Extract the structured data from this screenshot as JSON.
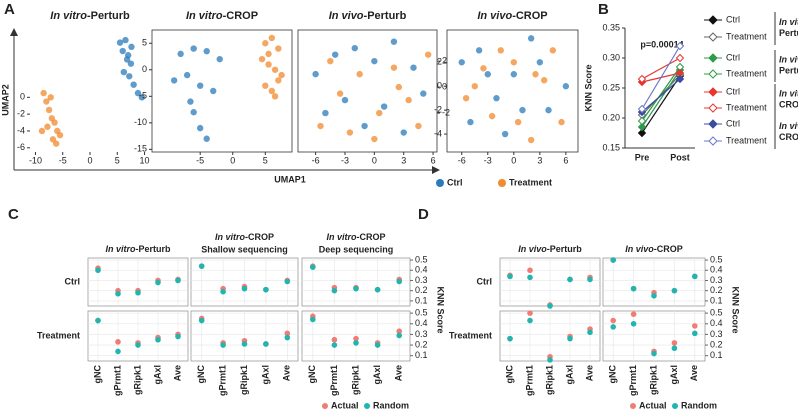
{
  "chart_data": [
    {
      "type": "umap",
      "label": "A",
      "xlabel": "UMAP1",
      "ylabel": "UMAP2",
      "series": [
        {
          "name": "Ctrl",
          "color": "#2b7bba"
        },
        {
          "name": "Treatment",
          "color": "#f28a2e"
        }
      ],
      "panels": [
        {
          "title": "In vitro-Perturb",
          "frame": false,
          "ytick_side": "left",
          "xlim": [
            -11,
            11
          ],
          "ylim": [
            -6.5,
            8
          ],
          "xticks": [
            -10,
            -5,
            0,
            5,
            10
          ],
          "yticks": [
            0,
            -2,
            -4,
            -6
          ],
          "points": [
            {
              "x": [
                5.5,
                6,
                6.5,
                7,
                7.5,
                6.2,
                7.2,
                8,
                8.8,
                9.5,
                6.8,
                7.6
              ],
              "y": [
                6.5,
                5.5,
                6.8,
                5,
                4,
                3,
                2.5,
                1.5,
                0.5,
                0,
                4.5,
                6
              ]
            },
            {
              "x": [
                -8.5,
                -8,
                -7.5,
                -7,
                -6.5,
                -6,
                -5.5,
                -7.8,
                -8.8,
                -6.8,
                -7.2,
                -6.2
              ],
              "y": [
                0.5,
                -0.5,
                -1.5,
                -2.5,
                -3,
                -4,
                -4.5,
                -3.5,
                -4,
                -5,
                0,
                -5.5
              ]
            }
          ]
        },
        {
          "title": "In vitro-CROP",
          "frame": true,
          "ytick_side": "left",
          "xlim": [
            -12.4,
            9.1
          ],
          "ylim": [
            -15.5,
            7.5
          ],
          "xticks": [
            -5,
            0,
            5
          ],
          "yticks": [
            5,
            0,
            -5,
            -10,
            -15
          ],
          "points": [
            {
              "x": [
                -8,
                -6,
                -4,
                -2,
                -9,
                -7,
                -5,
                -3,
                -6,
                -5,
                -4,
                -6.5
              ],
              "y": [
                3,
                4,
                3.5,
                2,
                -2,
                -1,
                -3,
                -4,
                -8,
                -11,
                -13,
                -6
              ]
            },
            {
              "x": [
                5,
                6,
                7,
                4.5,
                5.5,
                6.5,
                7.5,
                5,
                6,
                7,
                5.5,
                6.5
              ],
              "y": [
                5,
                6,
                4,
                2,
                1,
                0,
                -1,
                -3,
                -4,
                -2,
                3,
                -5
              ]
            }
          ]
        },
        {
          "title": "In vivo-Perturb",
          "frame": true,
          "ytick_side": "right",
          "xlim": [
            -7.8,
            6.4
          ],
          "ylim": [
            -5,
            4.4
          ],
          "xticks": [
            -6,
            -3,
            0,
            3,
            6
          ],
          "yticks": [
            2,
            0,
            -2
          ],
          "points": [
            {
              "x": [
                -6,
                -4,
                -2,
                0,
                2,
                4,
                -5,
                -3,
                -1,
                1,
                3,
                5
              ],
              "y": [
                1,
                2.5,
                3,
                2,
                3.5,
                1.5,
                -2,
                -1,
                -3,
                -1.5,
                -3.5,
                -0.5
              ]
            },
            {
              "x": [
                -5.5,
                -3.5,
                -1.5,
                0.5,
                2.5,
                4.5,
                -4.5,
                -2.5,
                0,
                2,
                3.5,
                5.5
              ],
              "y": [
                -3,
                -0.5,
                1,
                -2,
                0,
                -3,
                2,
                -3.5,
                -4,
                1.5,
                -1,
                2.5
              ]
            }
          ]
        },
        {
          "title": "In vivo-CROP",
          "frame": true,
          "ytick_side": "left",
          "xlim": [
            -7.7,
            7.4
          ],
          "ylim": [
            -5.5,
            4.7
          ],
          "xticks": [
            -6,
            -3,
            0,
            3,
            6
          ],
          "yticks": [
            2,
            0,
            -2,
            -4
          ],
          "points": [
            {
              "x": [
                -6,
                -4,
                -2,
                0,
                2,
                4,
                6,
                -5,
                -3,
                -1,
                1,
                3
              ],
              "y": [
                2,
                3,
                -1,
                1,
                4,
                -2,
                0,
                -3,
                1,
                -4,
                -2,
                2
              ]
            },
            {
              "x": [
                -5.5,
                -3.5,
                -1.5,
                0.5,
                2.5,
                4.5,
                5.5,
                -4.5,
                -2.5,
                0,
                2,
                3.5
              ],
              "y": [
                -1,
                1.5,
                3,
                -3,
                1,
                3,
                -3,
                0,
                -2.5,
                2,
                -4.5,
                0.5
              ]
            }
          ]
        }
      ]
    },
    {
      "type": "line",
      "label": "B",
      "ylabel": "KNN Score",
      "annotation": "p=0.00014",
      "categories": [
        "Pre",
        "Post"
      ],
      "ylim": [
        0.15,
        0.35
      ],
      "yticks": [
        0.15,
        {
          "value": 0.2,
          "label": "0.20"
        },
        0.25,
        {
          "value": 0.3,
          "label": "0.30"
        },
        0.35
      ],
      "groups": [
        "In vitro-Perturb",
        "In vivo-Perturb",
        "In vitro-CROP",
        "In vivo-CROP"
      ],
      "series": [
        {
          "name": "Ctrl",
          "color": "#111111",
          "filled": true,
          "values": [
            0.175,
            0.27
          ]
        },
        {
          "name": "Treatment",
          "color": "#666666",
          "filled": false,
          "values": [
            0.205,
            0.272
          ]
        },
        {
          "name": "Ctrl",
          "color": "#2e9b4a",
          "filled": true,
          "values": [
            0.185,
            0.28
          ]
        },
        {
          "name": "Treatment",
          "color": "#2e9b4a",
          "filled": false,
          "values": [
            0.195,
            0.285
          ]
        },
        {
          "name": "Ctrl",
          "color": "#e8352f",
          "filled": true,
          "values": [
            0.26,
            0.275
          ]
        },
        {
          "name": "Treatment",
          "color": "#e8352f",
          "filled": false,
          "values": [
            0.265,
            0.3
          ]
        },
        {
          "name": "Ctrl",
          "color": "#3b4ba0",
          "filled": true,
          "values": [
            0.21,
            0.265
          ]
        },
        {
          "name": "Treatment",
          "color": "#6a78c8",
          "filled": false,
          "values": [
            0.215,
            0.32
          ]
        }
      ]
    },
    {
      "type": "dotgrid",
      "label": "C",
      "ylabel": "KNN Score",
      "columns": [
        {
          "title": "In vitro-Perturb"
        },
        {
          "title": "In vitro-CROP",
          "subtitle": "Shallow sequencing"
        },
        {
          "title": "In vitro-CROP",
          "subtitle": "Deep sequencing"
        }
      ],
      "rows": [
        "Ctrl",
        "Treatment"
      ],
      "categories": [
        "gNC",
        "gPrmt1",
        "gRipk1",
        "gAxl",
        "Ave"
      ],
      "ylim": [
        0.05,
        0.52
      ],
      "yticks": [
        0.1,
        0.2,
        0.3,
        0.4,
        0.5
      ],
      "series": [
        {
          "name": "Actual",
          "color": "#f07c74",
          "values": [
            [
              [
                0.42,
                0.2,
                0.2,
                0.3,
                0.31
              ],
              [
                0.44,
                0.22,
                0.24,
                0.21,
                0.3
              ],
              [
                0.44,
                0.23,
                0.23,
                0.21,
                0.31
              ]
            ],
            [
              [
                0.43,
                0.23,
                0.22,
                0.27,
                0.3
              ],
              [
                0.45,
                0.22,
                0.24,
                0.21,
                0.31
              ],
              [
                0.47,
                0.25,
                0.26,
                0.22,
                0.33
              ]
            ]
          ]
        },
        {
          "name": "Random",
          "color": "#22b5b0",
          "values": [
            [
              [
                0.4,
                0.17,
                0.18,
                0.28,
                0.3
              ],
              [
                0.44,
                0.19,
                0.22,
                0.21,
                0.29
              ],
              [
                0.43,
                0.2,
                0.22,
                0.21,
                0.29
              ]
            ],
            [
              [
                0.43,
                0.14,
                0.2,
                0.25,
                0.28
              ],
              [
                0.43,
                0.2,
                0.21,
                0.21,
                0.27
              ],
              [
                0.44,
                0.2,
                0.22,
                0.2,
                0.29
              ]
            ]
          ]
        }
      ]
    },
    {
      "type": "dotgrid",
      "label": "D",
      "ylabel": "KNN Score",
      "columns": [
        {
          "title": "In vivo-Perturb"
        },
        {
          "title": "In vivo-CROP"
        }
      ],
      "rows": [
        "Ctrl",
        "Treatment"
      ],
      "categories": [
        "gNC",
        "gPrmt1",
        "gRipk1",
        "gAxl",
        "Ave"
      ],
      "ylim": [
        0.05,
        0.52
      ],
      "yticks": [
        0.1,
        0.2,
        0.3,
        0.4,
        0.5
      ],
      "series": [
        {
          "name": "Actual",
          "color": "#f07c74",
          "values": [
            [
              [
                0.35,
                0.4,
                0.06,
                0.31,
                0.33
              ],
              [
                0.5,
                0.22,
                0.18,
                0.2,
                0.34
              ]
            ],
            [
              [
                0.26,
                0.5,
                0.09,
                0.28,
                0.35
              ],
              [
                0.43,
                0.49,
                0.14,
                0.22,
                0.38
              ]
            ]
          ]
        },
        {
          "name": "Random",
          "color": "#22b5b0",
          "values": [
            [
              [
                0.34,
                0.33,
                0.05,
                0.31,
                0.31
              ],
              [
                0.5,
                0.22,
                0.15,
                0.2,
                0.34
              ]
            ],
            [
              [
                0.26,
                0.43,
                0.06,
                0.26,
                0.32
              ],
              [
                0.37,
                0.4,
                0.12,
                0.17,
                0.31
              ]
            ]
          ]
        }
      ]
    }
  ]
}
